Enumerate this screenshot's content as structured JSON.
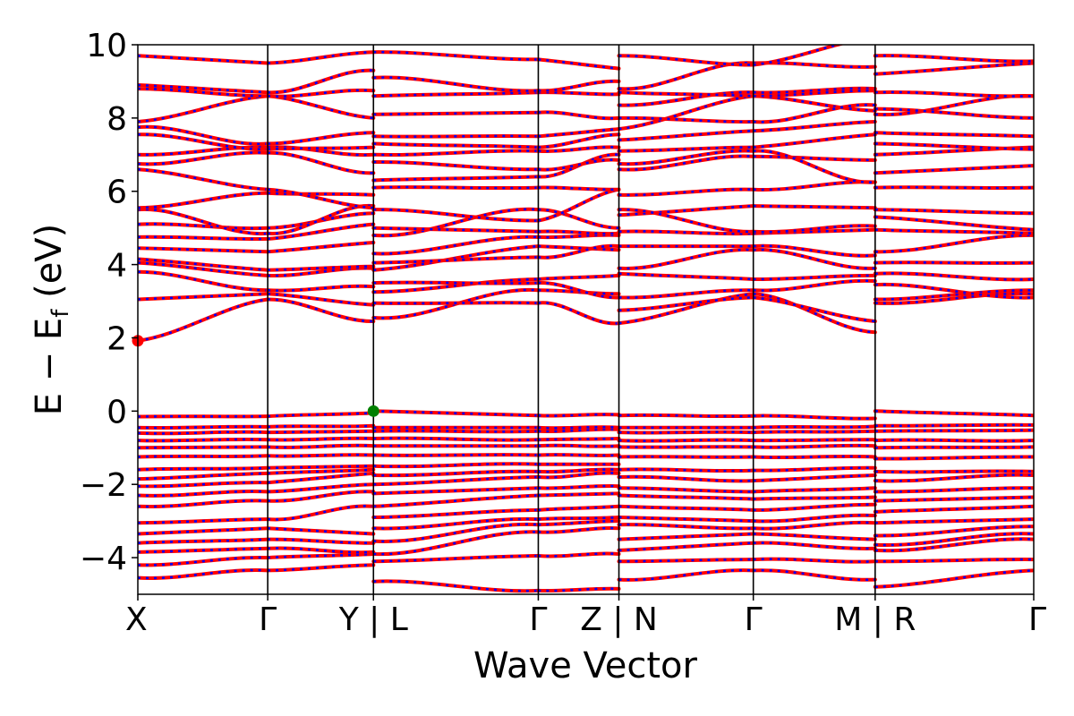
{
  "chart_data": {
    "type": "line",
    "title": "",
    "xlabel": "Wave Vector",
    "ylabel": "E − E",
    "ylabel_subscript": "f",
    "ylabel_unit": " (eV)",
    "ylim": [
      -5,
      10
    ],
    "yticks": [
      -4,
      -2,
      0,
      2,
      4,
      6,
      8,
      10
    ],
    "ytick_labels": [
      "−4",
      "−2",
      "0",
      "2",
      "4",
      "6",
      "8",
      "10"
    ],
    "xticks": [
      {
        "label": "X",
        "segment": 0
      },
      {
        "label": "Γ",
        "segment": 1
      },
      {
        "label": "Y | L",
        "segment": 2
      },
      {
        "label": "Γ",
        "segment": 3
      },
      {
        "label": "Z | N",
        "segment": 4
      },
      {
        "label": "Γ",
        "segment": 5
      },
      {
        "label": "M | R",
        "segment": 6
      },
      {
        "label": "Γ",
        "segment": 7
      }
    ],
    "segment_lengths": [
      0.145,
      0.118,
      0.184,
      0.09,
      0.15,
      0.136,
      0.177
    ],
    "grid": false,
    "line_colors": {
      "spin_up": "#ff0000",
      "spin_down": "#0000ff"
    },
    "line_styles": {
      "spin_up": "solid",
      "spin_down": "dashed"
    },
    "markers": [
      {
        "name": "CBM",
        "x_index": 0,
        "y": 1.92,
        "color": "#ff0000"
      },
      {
        "name": "VBM",
        "x_index": 2,
        "y": 0.0,
        "color": "#008000"
      }
    ],
    "segments": [
      {
        "from": "X",
        "to": "Γ",
        "bands": [
          [
            -4.55,
            -4.35
          ],
          [
            -4.2,
            -4.0
          ],
          [
            -3.85,
            -3.75
          ],
          [
            -3.6,
            -3.5
          ],
          [
            -3.35,
            -3.2
          ],
          [
            -3.05,
            -2.95
          ],
          [
            -2.6,
            -2.45
          ],
          [
            -2.3,
            -2.2
          ],
          [
            -2.05,
            -1.95
          ],
          [
            -1.85,
            -1.7
          ],
          [
            -1.6,
            -1.55
          ],
          [
            -1.25,
            -1.22
          ],
          [
            -1.0,
            -0.98
          ],
          [
            -0.8,
            -0.78
          ],
          [
            -0.6,
            -0.58
          ],
          [
            -0.45,
            -0.43
          ],
          [
            -0.15,
            -0.14
          ],
          [
            1.92,
            3.05
          ],
          [
            3.05,
            3.2
          ],
          [
            3.8,
            3.3
          ],
          [
            4.05,
            3.7
          ],
          [
            4.15,
            3.85
          ],
          [
            4.45,
            4.35
          ],
          [
            4.75,
            4.7
          ],
          [
            5.1,
            5.0
          ],
          [
            5.5,
            4.85
          ],
          [
            5.55,
            5.95
          ],
          [
            6.6,
            6.05
          ],
          [
            6.75,
            7.05
          ],
          [
            7.0,
            7.2
          ],
          [
            7.55,
            7.15
          ],
          [
            7.75,
            7.3
          ],
          [
            7.9,
            8.6
          ],
          [
            8.8,
            8.6
          ],
          [
            8.9,
            8.7
          ],
          [
            9.7,
            9.5
          ]
        ]
      },
      {
        "from": "Γ",
        "to": "Y",
        "bands": [
          [
            -4.35,
            -4.2
          ],
          [
            -4.0,
            -3.9
          ],
          [
            -3.75,
            -3.85
          ],
          [
            -3.5,
            -3.6
          ],
          [
            -3.2,
            -3.35
          ],
          [
            -2.95,
            -2.6
          ],
          [
            -2.45,
            -2.2
          ],
          [
            -2.2,
            -2.0
          ],
          [
            -1.95,
            -1.7
          ],
          [
            -1.7,
            -1.6
          ],
          [
            -1.55,
            -1.5
          ],
          [
            -1.22,
            -1.2
          ],
          [
            -0.98,
            -0.95
          ],
          [
            -0.78,
            -0.75
          ],
          [
            -0.58,
            -0.55
          ],
          [
            -0.43,
            -0.4
          ],
          [
            -0.14,
            -0.05
          ],
          [
            3.05,
            2.45
          ],
          [
            3.2,
            2.9
          ],
          [
            3.3,
            3.4
          ],
          [
            3.7,
            3.9
          ],
          [
            3.85,
            3.95
          ],
          [
            4.35,
            4.6
          ],
          [
            4.7,
            5.1
          ],
          [
            5.0,
            5.4
          ],
          [
            4.85,
            5.6
          ],
          [
            5.95,
            5.9
          ],
          [
            6.05,
            5.55
          ],
          [
            7.05,
            6.5
          ],
          [
            7.2,
            7.0
          ],
          [
            7.15,
            7.2
          ],
          [
            7.3,
            7.6
          ],
          [
            8.6,
            8.0
          ],
          [
            8.6,
            8.75
          ],
          [
            8.7,
            9.3
          ],
          [
            9.5,
            9.8
          ]
        ]
      },
      {
        "from": "L",
        "to": "Γ",
        "bands": [
          [
            -4.65,
            -4.9
          ],
          [
            -4.1,
            -3.95
          ],
          [
            -3.9,
            -3.3
          ],
          [
            -3.55,
            -3.1
          ],
          [
            -3.2,
            -2.95
          ],
          [
            -2.9,
            -2.7
          ],
          [
            -2.6,
            -2.3
          ],
          [
            -2.25,
            -2.1
          ],
          [
            -2.0,
            -1.8
          ],
          [
            -1.75,
            -1.65
          ],
          [
            -1.5,
            -1.45
          ],
          [
            -1.2,
            -1.2
          ],
          [
            -0.95,
            -0.95
          ],
          [
            -0.75,
            -0.78
          ],
          [
            -0.55,
            -0.55
          ],
          [
            -0.45,
            -0.45
          ],
          [
            0.0,
            -0.12
          ],
          [
            2.55,
            3.3
          ],
          [
            2.95,
            2.95
          ],
          [
            3.25,
            3.6
          ],
          [
            3.5,
            3.5
          ],
          [
            3.85,
            4.5
          ],
          [
            4.05,
            4.2
          ],
          [
            4.3,
            4.75
          ],
          [
            4.8,
            5.5
          ],
          [
            5.0,
            4.9
          ],
          [
            5.5,
            5.2
          ],
          [
            6.1,
            6.1
          ],
          [
            6.3,
            6.4
          ],
          [
            6.8,
            6.6
          ],
          [
            7.0,
            7.1
          ],
          [
            7.3,
            7.2
          ],
          [
            7.5,
            7.5
          ],
          [
            8.1,
            8.15
          ],
          [
            8.6,
            8.7
          ],
          [
            9.1,
            8.75
          ],
          [
            9.8,
            9.6
          ]
        ]
      },
      {
        "from": "Γ",
        "to": "Z",
        "bands": [
          [
            -4.9,
            -4.85
          ],
          [
            -3.95,
            -3.9
          ],
          [
            -3.3,
            -3.2
          ],
          [
            -3.1,
            -3.0
          ],
          [
            -2.95,
            -2.9
          ],
          [
            -2.7,
            -2.6
          ],
          [
            -2.3,
            -2.25
          ],
          [
            -2.1,
            -2.05
          ],
          [
            -1.8,
            -1.7
          ],
          [
            -1.65,
            -1.6
          ],
          [
            -1.45,
            -1.45
          ],
          [
            -1.2,
            -1.2
          ],
          [
            -0.95,
            -0.95
          ],
          [
            -0.78,
            -0.75
          ],
          [
            -0.55,
            -0.5
          ],
          [
            -0.45,
            -0.45
          ],
          [
            -0.12,
            -0.1
          ],
          [
            3.3,
            3.2
          ],
          [
            2.95,
            2.4
          ],
          [
            3.6,
            3.7
          ],
          [
            3.5,
            3.1
          ],
          [
            4.5,
            4.4
          ],
          [
            4.2,
            4.5
          ],
          [
            4.75,
            4.8
          ],
          [
            5.5,
            5.0
          ],
          [
            4.9,
            4.85
          ],
          [
            5.2,
            6.05
          ],
          [
            6.1,
            6.05
          ],
          [
            6.4,
            7.0
          ],
          [
            6.6,
            6.85
          ],
          [
            7.1,
            7.2
          ],
          [
            7.2,
            7.55
          ],
          [
            7.5,
            7.7
          ],
          [
            8.15,
            8.0
          ],
          [
            8.7,
            8.65
          ],
          [
            8.75,
            9.0
          ],
          [
            9.6,
            9.35
          ]
        ]
      },
      {
        "from": "N",
        "to": "Γ",
        "bands": [
          [
            -4.6,
            -4.35
          ],
          [
            -4.1,
            -4.05
          ],
          [
            -3.8,
            -3.6
          ],
          [
            -3.5,
            -3.35
          ],
          [
            -3.1,
            -3.2
          ],
          [
            -2.9,
            -3.0
          ],
          [
            -2.6,
            -2.7
          ],
          [
            -2.3,
            -2.4
          ],
          [
            -2.1,
            -2.2
          ],
          [
            -1.8,
            -1.9
          ],
          [
            -1.6,
            -1.62
          ],
          [
            -1.25,
            -1.25
          ],
          [
            -0.98,
            -0.98
          ],
          [
            -0.8,
            -0.8
          ],
          [
            -0.58,
            -0.58
          ],
          [
            -0.45,
            -0.45
          ],
          [
            -0.12,
            -0.13
          ],
          [
            2.4,
            3.2
          ],
          [
            2.75,
            3.1
          ],
          [
            3.1,
            3.3
          ],
          [
            3.75,
            3.6
          ],
          [
            3.9,
            4.4
          ],
          [
            4.5,
            4.5
          ],
          [
            4.9,
            4.85
          ],
          [
            5.35,
            5.6
          ],
          [
            5.5,
            4.9
          ],
          [
            5.9,
            6.05
          ],
          [
            6.6,
            6.95
          ],
          [
            6.75,
            7.1
          ],
          [
            7.1,
            7.2
          ],
          [
            7.4,
            7.65
          ],
          [
            7.7,
            8.6
          ],
          [
            8.0,
            7.9
          ],
          [
            8.35,
            8.7
          ],
          [
            8.7,
            8.6
          ],
          [
            8.8,
            9.5
          ],
          [
            9.7,
            9.45
          ]
        ]
      },
      {
        "from": "Γ",
        "to": "M",
        "bands": [
          [
            -4.35,
            -4.6
          ],
          [
            -4.05,
            -4.1
          ],
          [
            -3.6,
            -3.75
          ],
          [
            -3.35,
            -3.5
          ],
          [
            -3.2,
            -3.05
          ],
          [
            -3.0,
            -2.85
          ],
          [
            -2.7,
            -2.55
          ],
          [
            -2.4,
            -2.35
          ],
          [
            -2.2,
            -2.1
          ],
          [
            -1.9,
            -1.75
          ],
          [
            -1.62,
            -1.55
          ],
          [
            -1.25,
            -1.25
          ],
          [
            -0.98,
            -0.95
          ],
          [
            -0.8,
            -0.78
          ],
          [
            -0.58,
            -0.55
          ],
          [
            -0.45,
            -0.42
          ],
          [
            -0.13,
            -0.2
          ],
          [
            3.2,
            2.15
          ],
          [
            3.1,
            2.45
          ],
          [
            3.3,
            3.55
          ],
          [
            3.6,
            3.7
          ],
          [
            4.4,
            3.9
          ],
          [
            4.5,
            4.25
          ],
          [
            4.85,
            4.95
          ],
          [
            5.6,
            5.55
          ],
          [
            4.9,
            5.05
          ],
          [
            6.05,
            6.25
          ],
          [
            6.95,
            6.85
          ],
          [
            7.1,
            6.25
          ],
          [
            7.2,
            7.55
          ],
          [
            7.65,
            7.9
          ],
          [
            8.6,
            8.2
          ],
          [
            7.9,
            8.35
          ],
          [
            8.7,
            8.8
          ],
          [
            8.6,
            8.75
          ],
          [
            9.5,
            9.4
          ],
          [
            9.45,
            10.2
          ]
        ]
      },
      {
        "from": "R",
        "to": "Γ",
        "bands": [
          [
            -4.8,
            -4.35
          ],
          [
            -4.1,
            -4.05
          ],
          [
            -3.8,
            -3.5
          ],
          [
            -3.65,
            -3.35
          ],
          [
            -3.4,
            -3.15
          ],
          [
            -3.05,
            -2.95
          ],
          [
            -2.75,
            -2.6
          ],
          [
            -2.45,
            -2.35
          ],
          [
            -2.2,
            -2.1
          ],
          [
            -1.9,
            -1.75
          ],
          [
            -1.65,
            -1.65
          ],
          [
            -1.3,
            -1.25
          ],
          [
            -1.0,
            -0.98
          ],
          [
            -0.8,
            -0.8
          ],
          [
            -0.55,
            -0.52
          ],
          [
            -0.4,
            -0.38
          ],
          [
            0.0,
            -0.12
          ],
          [
            2.95,
            3.2
          ],
          [
            3.05,
            3.3
          ],
          [
            3.45,
            3.1
          ],
          [
            3.75,
            3.6
          ],
          [
            4.05,
            4.05
          ],
          [
            4.35,
            4.8
          ],
          [
            4.95,
            4.85
          ],
          [
            5.3,
            4.95
          ],
          [
            5.5,
            5.4
          ],
          [
            6.1,
            6.1
          ],
          [
            6.5,
            6.7
          ],
          [
            7.0,
            7.2
          ],
          [
            7.3,
            7.15
          ],
          [
            7.6,
            7.5
          ],
          [
            8.1,
            8.6
          ],
          [
            8.25,
            8.0
          ],
          [
            8.7,
            8.6
          ],
          [
            9.2,
            9.5
          ],
          [
            9.7,
            9.55
          ],
          [
            10.1,
            10.2
          ]
        ]
      }
    ]
  }
}
